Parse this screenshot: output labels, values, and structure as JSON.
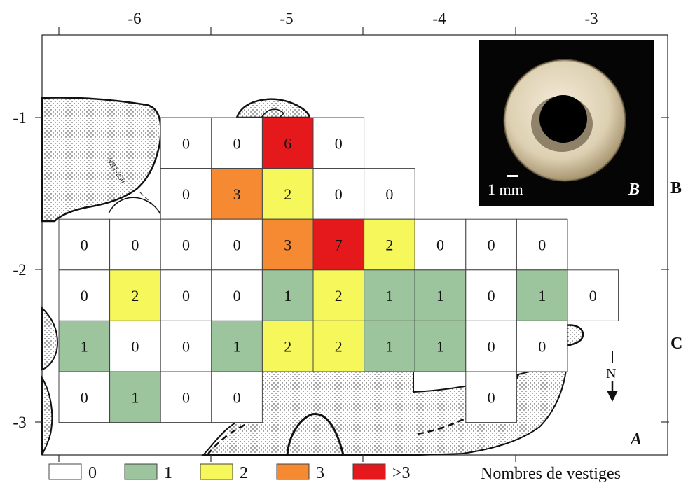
{
  "axes": {
    "x_ticks": [
      "-6",
      "-5",
      "-4",
      "-3"
    ],
    "y_ticks": [
      "-1",
      "-2",
      "-3"
    ]
  },
  "row_labels": [
    "B",
    "C"
  ],
  "panel_labels": {
    "main": "A",
    "inset": "B"
  },
  "inset": {
    "scale_text": "1 mm",
    "description": "photo of a perforated disc bead"
  },
  "north_label": "N",
  "contour_label": "NR1-250",
  "legend": {
    "title": "Nombres de vestiges",
    "items": [
      {
        "label": "0",
        "color": "#ffffff"
      },
      {
        "label": "1",
        "color": "#9cc59d"
      },
      {
        "label": "2",
        "color": "#f6f75a"
      },
      {
        "label": "3",
        "color": "#f58a32"
      },
      {
        "label": ">3",
        "color": "#e5191b"
      }
    ]
  },
  "grid": {
    "rows": [
      [
        null,
        null,
        0,
        0,
        6,
        0,
        null,
        null,
        null,
        null,
        null
      ],
      [
        null,
        null,
        0,
        3,
        2,
        0,
        0,
        null,
        null,
        null,
        null
      ],
      [
        0,
        0,
        0,
        0,
        3,
        7,
        2,
        0,
        0,
        0,
        null
      ],
      [
        0,
        2,
        0,
        0,
        1,
        2,
        1,
        1,
        0,
        1,
        0
      ],
      [
        1,
        0,
        0,
        1,
        2,
        2,
        1,
        1,
        0,
        0,
        null
      ],
      [
        0,
        1,
        0,
        0,
        null,
        null,
        null,
        null,
        0,
        null,
        null
      ]
    ]
  }
}
